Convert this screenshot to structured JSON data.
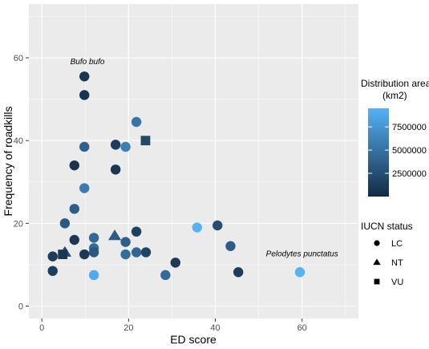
{
  "chart_data": {
    "type": "scatter",
    "xlabel": "ED score",
    "ylabel": "Frequency of roadkills",
    "xlim": [
      -3,
      73
    ],
    "ylim": [
      -3,
      73
    ],
    "x_ticks": [
      0,
      20,
      40,
      60
    ],
    "y_ticks": [
      0,
      20,
      40,
      60
    ],
    "grid": true,
    "annotations": [
      {
        "text": "Bufo bufo",
        "x": 10.5,
        "y": 58.5
      },
      {
        "text": "Pelodytes punctatus",
        "x": 60,
        "y": 12
      }
    ],
    "color_legend": {
      "title_line1": "Distribution area",
      "title_line2": "(km2)",
      "min": 0,
      "max": 9500000,
      "low_color": "#132B43",
      "high_color": "#56B1F7",
      "tick_values": [
        2500000,
        5000000,
        7500000
      ],
      "tick_labels": [
        "2500000",
        "5000000",
        "7500000"
      ]
    },
    "shape_legend": {
      "title": "IUCN status",
      "items": [
        {
          "label": "LC",
          "shape": "circle"
        },
        {
          "label": "NT",
          "shape": "triangle"
        },
        {
          "label": "VU",
          "shape": "square"
        }
      ]
    },
    "points": [
      {
        "x": 9.8,
        "y": 55.5,
        "area": 800000,
        "status": "LC"
      },
      {
        "x": 9.8,
        "y": 51,
        "area": 700000,
        "status": "LC"
      },
      {
        "x": 21.8,
        "y": 44.5,
        "area": 5200000,
        "status": "LC"
      },
      {
        "x": 23.9,
        "y": 40,
        "area": 2000000,
        "status": "VU"
      },
      {
        "x": 17.0,
        "y": 39,
        "area": 1300000,
        "status": "LC"
      },
      {
        "x": 19.3,
        "y": 38.5,
        "area": 6000000,
        "status": "LC"
      },
      {
        "x": 9.8,
        "y": 38.5,
        "area": 4000000,
        "status": "LC"
      },
      {
        "x": 7.5,
        "y": 34,
        "area": 700000,
        "status": "LC"
      },
      {
        "x": 17.0,
        "y": 33,
        "area": 800000,
        "status": "LC"
      },
      {
        "x": 9.8,
        "y": 28.5,
        "area": 5700000,
        "status": "LC"
      },
      {
        "x": 7.5,
        "y": 23.5,
        "area": 3600000,
        "status": "LC"
      },
      {
        "x": 5.3,
        "y": 20,
        "area": 3300000,
        "status": "LC"
      },
      {
        "x": 35.8,
        "y": 19,
        "area": 9500000,
        "status": "LC"
      },
      {
        "x": 40.5,
        "y": 19.5,
        "area": 2400000,
        "status": "LC"
      },
      {
        "x": 21.8,
        "y": 18,
        "area": 1500000,
        "status": "LC"
      },
      {
        "x": 16.8,
        "y": 17,
        "area": 3500000,
        "status": "NT"
      },
      {
        "x": 12.0,
        "y": 16.5,
        "area": 4300000,
        "status": "LC"
      },
      {
        "x": 7.5,
        "y": 16,
        "area": 900000,
        "status": "LC"
      },
      {
        "x": 19.3,
        "y": 15.5,
        "area": 3700000,
        "status": "LC"
      },
      {
        "x": 43.5,
        "y": 14.5,
        "area": 3500000,
        "status": "LC"
      },
      {
        "x": 12.0,
        "y": 14,
        "area": 4600000,
        "status": "LC"
      },
      {
        "x": 12.0,
        "y": 13,
        "area": 3200000,
        "status": "LC"
      },
      {
        "x": 5.3,
        "y": 13,
        "area": 2500000,
        "status": "NT"
      },
      {
        "x": 4.8,
        "y": 12.5,
        "area": 800000,
        "status": "VU"
      },
      {
        "x": 21.8,
        "y": 13,
        "area": 4200000,
        "status": "LC"
      },
      {
        "x": 24.0,
        "y": 13,
        "area": 1700000,
        "status": "LC"
      },
      {
        "x": 9.8,
        "y": 12.5,
        "area": 1000000,
        "status": "LC"
      },
      {
        "x": 19.3,
        "y": 12.5,
        "area": 4700000,
        "status": "LC"
      },
      {
        "x": 2.5,
        "y": 12,
        "area": 1300000,
        "status": "LC"
      },
      {
        "x": 30.8,
        "y": 10.5,
        "area": 1100000,
        "status": "LC"
      },
      {
        "x": 2.5,
        "y": 8.5,
        "area": 1400000,
        "status": "LC"
      },
      {
        "x": 45.3,
        "y": 8.2,
        "area": 1200000,
        "status": "LC"
      },
      {
        "x": 59.5,
        "y": 8.2,
        "area": 9500000,
        "status": "LC"
      },
      {
        "x": 12.0,
        "y": 7.5,
        "area": 9000000,
        "status": "LC"
      },
      {
        "x": 28.5,
        "y": 7.5,
        "area": 4500000,
        "status": "LC"
      }
    ]
  }
}
